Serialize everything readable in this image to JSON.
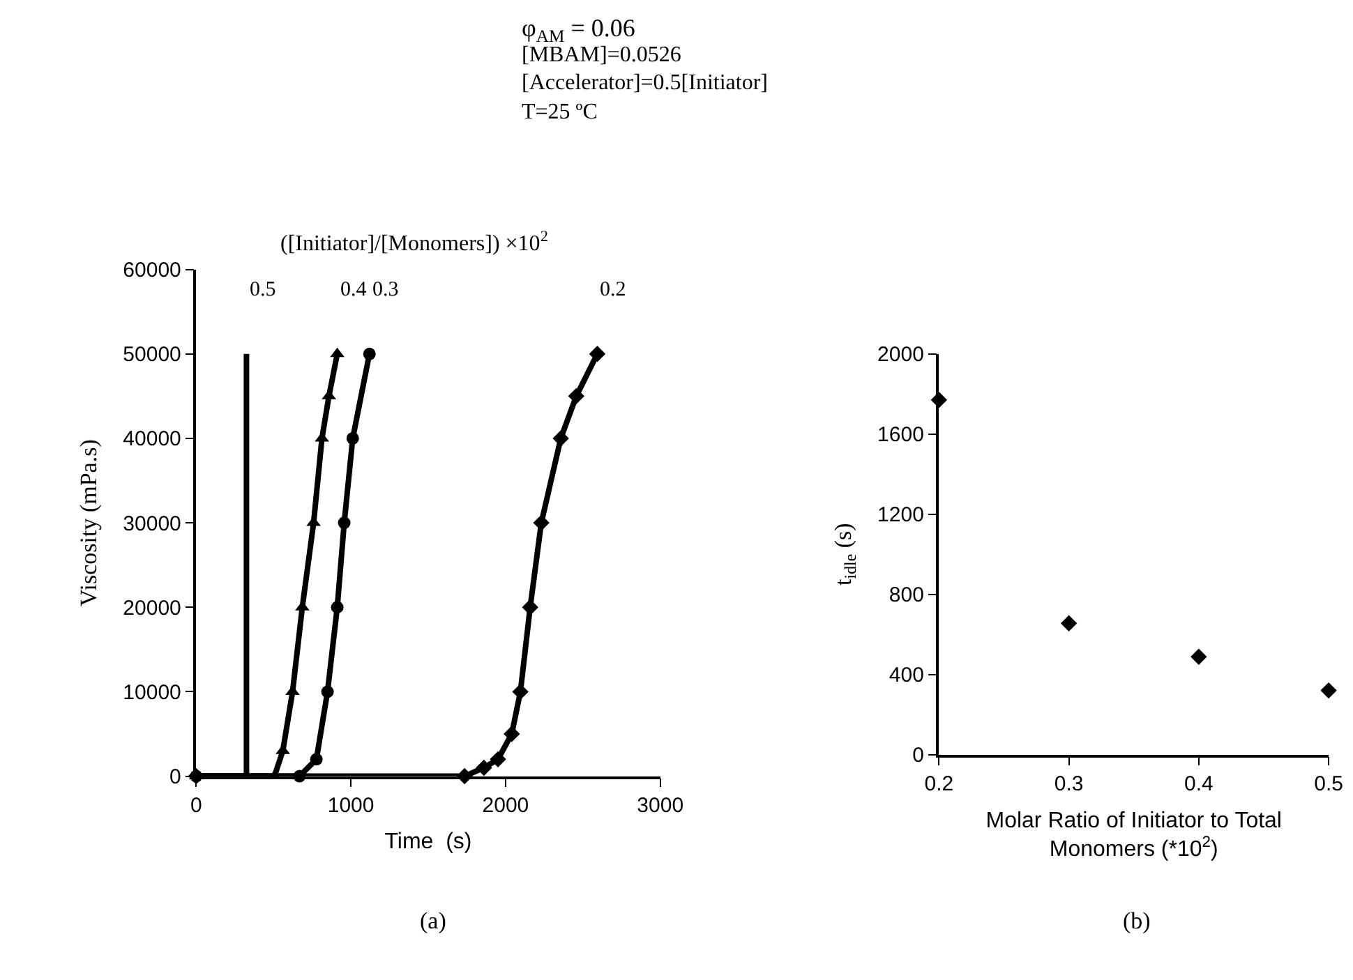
{
  "chart_data": [
    {
      "type": "line",
      "xlabel": "Time  (s)",
      "ylabel": "Viscosity (mPa.s)",
      "legend_title": "([Initiator]/[Monomers]) ×10$^{2}$",
      "xlim": [
        0,
        3000
      ],
      "xticks": [
        0,
        1000,
        2000,
        3000
      ],
      "ylim": [
        0,
        60000
      ],
      "yticks": [
        0,
        10000,
        20000,
        30000,
        40000,
        50000,
        60000
      ],
      "annotations": [
        "φ$_{AM}$ = 0.06",
        "[MBAM]=0.0526",
        "[Accelerator]=0.5[Initiator]",
        "T=25 ºC",
        "(a)"
      ],
      "series": [
        {
          "name": "0.5",
          "color": "#000000",
          "marker": "none",
          "x": [
            0,
            325,
            325
          ],
          "values": [
            0,
            0,
            50000
          ]
        },
        {
          "name": "0.4",
          "color": "#000000",
          "marker": "triangle",
          "x": [
            0,
            506,
            560,
            623,
            686,
            759,
            813,
            858,
            912
          ],
          "values": [
            0,
            0,
            3000,
            10000,
            20000,
            30000,
            40000,
            45000,
            50000
          ]
        },
        {
          "name": "0.3",
          "color": "#000000",
          "marker": "circle",
          "x": [
            0,
            668,
            777,
            849,
            912,
            957,
            1012,
            1120
          ],
          "values": [
            0,
            0,
            2000,
            10000,
            20000,
            30000,
            40000,
            50000
          ]
        },
        {
          "name": "0.2",
          "color": "#000000",
          "marker": "diamond",
          "x": [
            0,
            1735,
            1860,
            1951,
            2040,
            2096,
            2159,
            2231,
            2357,
            2457,
            2593
          ],
          "values": [
            0,
            0,
            1000,
            2000,
            5000,
            10000,
            20000,
            30000,
            40000,
            45000,
            50000
          ]
        }
      ]
    },
    {
      "type": "scatter",
      "xlabel": "Molar Ratio of Initiator to Total Monomers (*10$^{2}$)",
      "ylabel": "t$_{idle}$ (s)",
      "xlim": [
        0.2,
        0.5
      ],
      "xticks": [
        0.2,
        0.3,
        0.4,
        0.5
      ],
      "ylim": [
        0,
        2000
      ],
      "yticks": [
        0,
        400,
        800,
        1200,
        1600,
        2000
      ],
      "marker": "diamond",
      "annotations": [
        "(b)"
      ],
      "series": [
        {
          "color": "#000000",
          "x": [
            0.2,
            0.3,
            0.4,
            0.5
          ],
          "values": [
            1770,
            655,
            488,
            320
          ]
        }
      ]
    }
  ]
}
